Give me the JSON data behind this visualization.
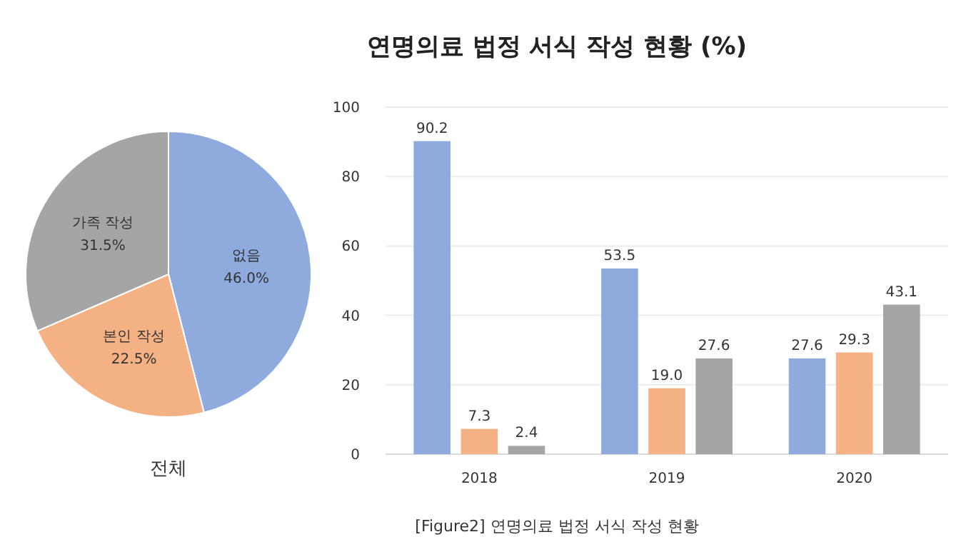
{
  "chart_data": [
    {
      "type": "pie",
      "title": "전체",
      "categories": [
        "없음",
        "본인 작성",
        "가족 작성"
      ],
      "values": [
        46.0,
        22.5,
        31.5
      ],
      "colors": [
        "#8faadc",
        "#f4b183",
        "#a5a5a5"
      ],
      "value_labels": [
        "46.0%",
        "22.5%",
        "31.5%"
      ],
      "annotations": [
        "[Figure2] 연명의료 법정 서식 작성 현황"
      ]
    },
    {
      "type": "bar",
      "title": "연명의료 법정 서식 작성 현황 (%)",
      "categories": [
        "2018",
        "2019",
        "2020"
      ],
      "ylim": [
        0,
        100
      ],
      "yticks": [
        0,
        20,
        40,
        60,
        80,
        100
      ],
      "grid": "y",
      "series": [
        {
          "color": "#8faadc",
          "values": [
            90.2,
            53.5,
            27.6
          ],
          "value_labels": [
            "90.2",
            "53.5",
            "27.6"
          ]
        },
        {
          "color": "#f4b183",
          "values": [
            7.3,
            19.0,
            29.3
          ],
          "value_labels": [
            "7.3",
            "19.0",
            "29.3"
          ]
        },
        {
          "color": "#a5a5a5",
          "values": [
            2.4,
            27.6,
            43.1
          ],
          "value_labels": [
            "2.4",
            "27.6",
            "43.1"
          ]
        }
      ]
    }
  ]
}
